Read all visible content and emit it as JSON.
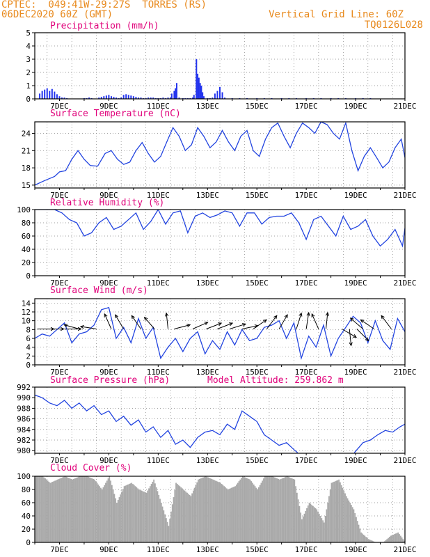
{
  "header": {
    "line1": "CPTEC:  049:41W-29:27S  TORRES (RS)",
    "line2": "06DEC2020 60Z (GMT)",
    "grid_note": "Vertical Grid Line: 60Z",
    "code": "TQ0126L028"
  },
  "model_altitude": "Model Altitude: 259.862 m",
  "colors": {
    "header": "#e8891c",
    "title": "#e0007a",
    "line": "#2244e0",
    "bar": "#2233ee",
    "cloud": "#a9a9a9",
    "arrow": "#000000",
    "grid": "#808080"
  },
  "x_axis": {
    "unit": "day of December 2020",
    "range": [
      6,
      21
    ],
    "ticks": [
      7,
      9,
      11,
      13,
      15,
      17,
      19,
      21
    ],
    "tick_labels": [
      "7DEC",
      "9DEC",
      "11DEC",
      "13DEC",
      "15DEC",
      "17DEC",
      "19DEC",
      "21DEC"
    ]
  },
  "chart_data": [
    {
      "type": "bar",
      "title": "Precipitation (mm/h)",
      "ylim": [
        0,
        5
      ],
      "yticks": [
        0,
        1,
        2,
        3,
        4,
        5
      ],
      "x": [
        6.2,
        6.3,
        6.4,
        6.5,
        6.6,
        6.7,
        6.8,
        6.9,
        7.0,
        7.1,
        7.2,
        7.3,
        8.0,
        8.1,
        8.2,
        8.3,
        8.6,
        8.7,
        8.8,
        8.9,
        9.0,
        9.1,
        9.2,
        9.3,
        9.4,
        9.5,
        9.6,
        9.7,
        9.8,
        9.9,
        10.0,
        10.1,
        10.2,
        10.3,
        10.4,
        10.5,
        10.6,
        10.7,
        10.8,
        10.9,
        11.0,
        11.1,
        11.2,
        11.3,
        11.4,
        11.5,
        11.55,
        11.65,
        11.7,
        11.75,
        11.85,
        12.0,
        12.1,
        12.2,
        12.3,
        12.4,
        12.45,
        12.55,
        12.6,
        12.65,
        12.7,
        12.75,
        12.8,
        12.85,
        13.0,
        13.1,
        13.2,
        13.3,
        13.4,
        13.5,
        13.6,
        13.7,
        14.0,
        14.3,
        14.6,
        15.0,
        15.3,
        15.6,
        16.0,
        16.3,
        16.6,
        17.0,
        17.3,
        17.6,
        18.0,
        18.3,
        18.6,
        19.0,
        19.3,
        19.6
      ],
      "values": [
        0.4,
        0.6,
        0.7,
        0.8,
        0.6,
        0.75,
        0.55,
        0.35,
        0.2,
        0.1,
        0.1,
        0.05,
        0.05,
        0.05,
        0.1,
        0.05,
        0.1,
        0.15,
        0.2,
        0.25,
        0.3,
        0.2,
        0.15,
        0.1,
        0.05,
        0.1,
        0.3,
        0.35,
        0.3,
        0.25,
        0.2,
        0.15,
        0.1,
        0.1,
        0.05,
        0.05,
        0.1,
        0.1,
        0.1,
        0.05,
        0.05,
        0.05,
        0.1,
        0.05,
        0.1,
        0.1,
        0.4,
        0.6,
        0.8,
        1.2,
        0.1,
        0.05,
        0.05,
        0.05,
        0.05,
        0.1,
        0.3,
        3.0,
        1.9,
        1.6,
        1.2,
        1.0,
        0.5,
        0.2,
        0.05,
        0.05,
        0.1,
        0.4,
        0.6,
        0.9,
        0.5,
        0.1,
        0.05,
        0.05,
        0.05,
        0.05,
        0.05,
        0.05,
        0.05,
        0.05,
        0.05,
        0.05,
        0.05,
        0.05,
        0.05,
        0.05,
        0.05,
        0.05,
        0.05,
        0.05
      ]
    },
    {
      "type": "line",
      "title": "Surface Temperature (nC)",
      "ylim": [
        14.5,
        26
      ],
      "yticks": [
        15,
        18,
        21,
        24
      ],
      "x": [
        6.0,
        6.4,
        6.8,
        7.0,
        7.25,
        7.5,
        7.75,
        8.0,
        8.25,
        8.55,
        8.85,
        9.1,
        9.35,
        9.6,
        9.85,
        10.1,
        10.35,
        10.6,
        10.85,
        11.1,
        11.35,
        11.6,
        11.85,
        12.1,
        12.35,
        12.6,
        12.85,
        13.1,
        13.35,
        13.6,
        13.85,
        14.1,
        14.35,
        14.6,
        14.85,
        15.1,
        15.35,
        15.6,
        15.85,
        16.1,
        16.35,
        16.6,
        16.85,
        17.1,
        17.35,
        17.6,
        17.85,
        18.1,
        18.35,
        18.6,
        18.85,
        19.1,
        19.35,
        19.6,
        19.85,
        20.1,
        20.35,
        20.6,
        20.85,
        21.0
      ],
      "values": [
        15.0,
        15.8,
        16.5,
        17.3,
        17.5,
        19.5,
        21.0,
        19.5,
        18.4,
        18.3,
        20.5,
        21.0,
        19.5,
        18.6,
        19.0,
        21.0,
        22.4,
        20.5,
        19.0,
        20.0,
        22.5,
        25.0,
        23.5,
        21.0,
        22.0,
        25.0,
        23.5,
        21.5,
        22.5,
        24.5,
        22.5,
        21.0,
        23.5,
        24.5,
        21.0,
        20.0,
        23.0,
        25.0,
        25.8,
        23.5,
        21.5,
        24.0,
        25.8,
        25.0,
        24.0,
        26.0,
        25.5,
        24.0,
        23.0,
        25.8,
        21.0,
        17.5,
        20.0,
        21.5,
        19.8,
        18.0,
        19.0,
        21.5,
        23.0,
        19.8
      ]
    },
    {
      "type": "line",
      "title": "Relative Humidity (%)",
      "ylim": [
        0,
        100
      ],
      "yticks": [
        0,
        20,
        40,
        60,
        80,
        100
      ],
      "x": [
        6.0,
        6.4,
        6.8,
        7.1,
        7.4,
        7.7,
        8.0,
        8.3,
        8.6,
        8.9,
        9.2,
        9.5,
        9.8,
        10.1,
        10.4,
        10.7,
        11.0,
        11.3,
        11.6,
        11.9,
        12.2,
        12.5,
        12.8,
        13.1,
        13.4,
        13.7,
        14.0,
        14.3,
        14.6,
        14.9,
        15.2,
        15.5,
        15.8,
        16.1,
        16.4,
        16.7,
        17.0,
        17.3,
        17.6,
        17.9,
        18.2,
        18.5,
        18.8,
        19.1,
        19.4,
        19.7,
        20.0,
        20.3,
        20.6,
        20.9,
        21.0
      ],
      "values": [
        100,
        100,
        100,
        95,
        85,
        80,
        60,
        65,
        80,
        88,
        70,
        75,
        85,
        95,
        70,
        82,
        100,
        78,
        95,
        98,
        65,
        90,
        95,
        88,
        92,
        98,
        95,
        75,
        95,
        95,
        78,
        88,
        90,
        90,
        95,
        80,
        55,
        85,
        90,
        75,
        60,
        90,
        70,
        75,
        85,
        60,
        45,
        55,
        70,
        45,
        72
      ]
    },
    {
      "type": "line",
      "title": "Surface Wind (m/s)",
      "ylim": [
        0,
        15
      ],
      "yticks": [
        0,
        2,
        4,
        6,
        8,
        10,
        12,
        14
      ],
      "x": [
        6.0,
        6.3,
        6.6,
        6.9,
        7.2,
        7.5,
        7.8,
        8.1,
        8.4,
        8.7,
        9.0,
        9.3,
        9.6,
        9.9,
        10.2,
        10.5,
        10.8,
        11.1,
        11.4,
        11.7,
        12.0,
        12.3,
        12.6,
        12.9,
        13.2,
        13.5,
        13.8,
        14.1,
        14.4,
        14.7,
        15.0,
        15.3,
        15.6,
        15.9,
        16.2,
        16.5,
        16.8,
        17.1,
        17.4,
        17.7,
        18.0,
        18.3,
        18.6,
        18.9,
        19.2,
        19.5,
        19.8,
        20.1,
        20.4,
        20.7,
        21.0
      ],
      "values": [
        6,
        7,
        6.5,
        8,
        9.5,
        5.0,
        7,
        7.5,
        9,
        12.5,
        13,
        6.0,
        8.5,
        5.0,
        10.5,
        6,
        8.5,
        1.5,
        4,
        6,
        3.0,
        6,
        7.5,
        2.5,
        5.5,
        3.5,
        7.5,
        4.5,
        8,
        5.5,
        6.0,
        8.5,
        9,
        10,
        6.0,
        9.5,
        1.5,
        6.5,
        4.0,
        9,
        2.0,
        6,
        8.5,
        11,
        9.5,
        5.0,
        10,
        5.5,
        3.5,
        10.5,
        7.5
      ],
      "arrows": [
        {
          "x": 6.1,
          "u": 1.0,
          "v": 0.0
        },
        {
          "x": 6.5,
          "u": 1.0,
          "v": 0.0
        },
        {
          "x": 7.2,
          "u": 1.0,
          "v": 0.0
        },
        {
          "x": 7.8,
          "u": -0.9,
          "v": 0.25
        },
        {
          "x": 8.5,
          "u": -0.95,
          "v": 0.15
        },
        {
          "x": 9.1,
          "u": -0.4,
          "v": 0.9
        },
        {
          "x": 9.6,
          "u": -0.5,
          "v": 0.85
        },
        {
          "x": 10.3,
          "u": -0.55,
          "v": 0.8
        },
        {
          "x": 10.85,
          "u": -0.6,
          "v": 0.7
        },
        {
          "x": 11.4,
          "u": -0.1,
          "v": 0.95
        },
        {
          "x": 11.65,
          "u": 0.95,
          "v": 0.25
        },
        {
          "x": 12.4,
          "u": 0.9,
          "v": 0.4
        },
        {
          "x": 12.95,
          "u": 0.9,
          "v": 0.35
        },
        {
          "x": 13.4,
          "u": 0.9,
          "v": 0.35
        },
        {
          "x": 13.9,
          "u": 0.95,
          "v": 0.3
        },
        {
          "x": 14.4,
          "u": 0.95,
          "v": 0.2
        },
        {
          "x": 14.85,
          "u": 0.8,
          "v": 0.55
        },
        {
          "x": 15.4,
          "u": 0.6,
          "v": 0.8
        },
        {
          "x": 15.9,
          "u": 0.5,
          "v": 0.85
        },
        {
          "x": 16.6,
          "u": 0.3,
          "v": 0.95
        },
        {
          "x": 17.0,
          "u": 0.15,
          "v": 0.98
        },
        {
          "x": 17.5,
          "u": -0.4,
          "v": 0.9
        },
        {
          "x": 17.8,
          "u": 0.1,
          "v": 0.98
        },
        {
          "x": 18.45,
          "u": 0.85,
          "v": -0.5
        },
        {
          "x": 18.75,
          "u": 0.1,
          "v": -0.99
        },
        {
          "x": 19.05,
          "u": 0.7,
          "v": -0.7
        },
        {
          "x": 19.3,
          "u": -0.75,
          "v": 0.65
        },
        {
          "x": 19.75,
          "u": -0.8,
          "v": 0.55
        },
        {
          "x": 20.45,
          "u": -0.6,
          "v": 0.8
        }
      ]
    },
    {
      "type": "line",
      "title": "Surface Pressure (hPa)",
      "ylim": [
        979.5,
        992
      ],
      "yticks": [
        980,
        982,
        984,
        986,
        988,
        990,
        992
      ],
      "x": [
        6.0,
        6.3,
        6.6,
        6.9,
        7.2,
        7.5,
        7.8,
        8.1,
        8.4,
        8.7,
        9.0,
        9.3,
        9.6,
        9.9,
        10.2,
        10.5,
        10.8,
        11.1,
        11.4,
        11.7,
        12.0,
        12.3,
        12.6,
        12.9,
        13.2,
        13.5,
        13.8,
        14.1,
        14.4,
        14.7,
        15.0,
        15.3,
        15.6,
        15.9,
        16.2,
        16.5,
        16.65
      ],
      "values": [
        990.5,
        990.0,
        989.0,
        988.5,
        989.5,
        988.0,
        989.0,
        987.5,
        988.5,
        986.8,
        987.5,
        985.5,
        986.5,
        984.8,
        985.8,
        983.5,
        984.5,
        982.5,
        983.8,
        981.2,
        982.0,
        980.6,
        982.5,
        983.5,
        983.8,
        983.0,
        985.0,
        984.0,
        987.5,
        986.5,
        985.5,
        983.0,
        982.0,
        981.0,
        981.5,
        980.2,
        979.6
      ],
      "x2": [
        18.95,
        19.3,
        19.6,
        19.9,
        20.2,
        20.5,
        20.8,
        21.0
      ],
      "values2": [
        979.6,
        981.5,
        982.0,
        983.0,
        983.8,
        983.5,
        984.5,
        985.0
      ]
    },
    {
      "type": "area",
      "title": "Cloud Cover (%)",
      "ylim": [
        0,
        100
      ],
      "yticks": [
        0,
        20,
        40,
        60,
        80,
        100
      ],
      "x": [
        6.0,
        6.3,
        6.6,
        6.9,
        7.2,
        7.5,
        7.8,
        8.1,
        8.4,
        8.7,
        9.0,
        9.3,
        9.6,
        9.9,
        10.2,
        10.5,
        10.8,
        11.1,
        11.4,
        11.7,
        12.0,
        12.3,
        12.6,
        12.9,
        13.2,
        13.5,
        13.8,
        14.1,
        14.4,
        14.7,
        15.0,
        15.3,
        15.6,
        15.9,
        16.2,
        16.5,
        16.8,
        17.1,
        17.4,
        17.7,
        18.0,
        18.3,
        18.6,
        18.9,
        19.2,
        19.5,
        19.8,
        20.1,
        20.4,
        20.7,
        21.0
      ],
      "values": [
        100,
        100,
        90,
        95,
        100,
        95,
        100,
        100,
        95,
        80,
        100,
        60,
        85,
        90,
        80,
        75,
        95,
        60,
        25,
        90,
        80,
        70,
        95,
        100,
        95,
        90,
        80,
        85,
        100,
        95,
        80,
        100,
        100,
        95,
        100,
        95,
        35,
        60,
        50,
        30,
        90,
        95,
        70,
        50,
        15,
        5,
        0,
        0,
        10,
        15,
        0
      ]
    }
  ]
}
